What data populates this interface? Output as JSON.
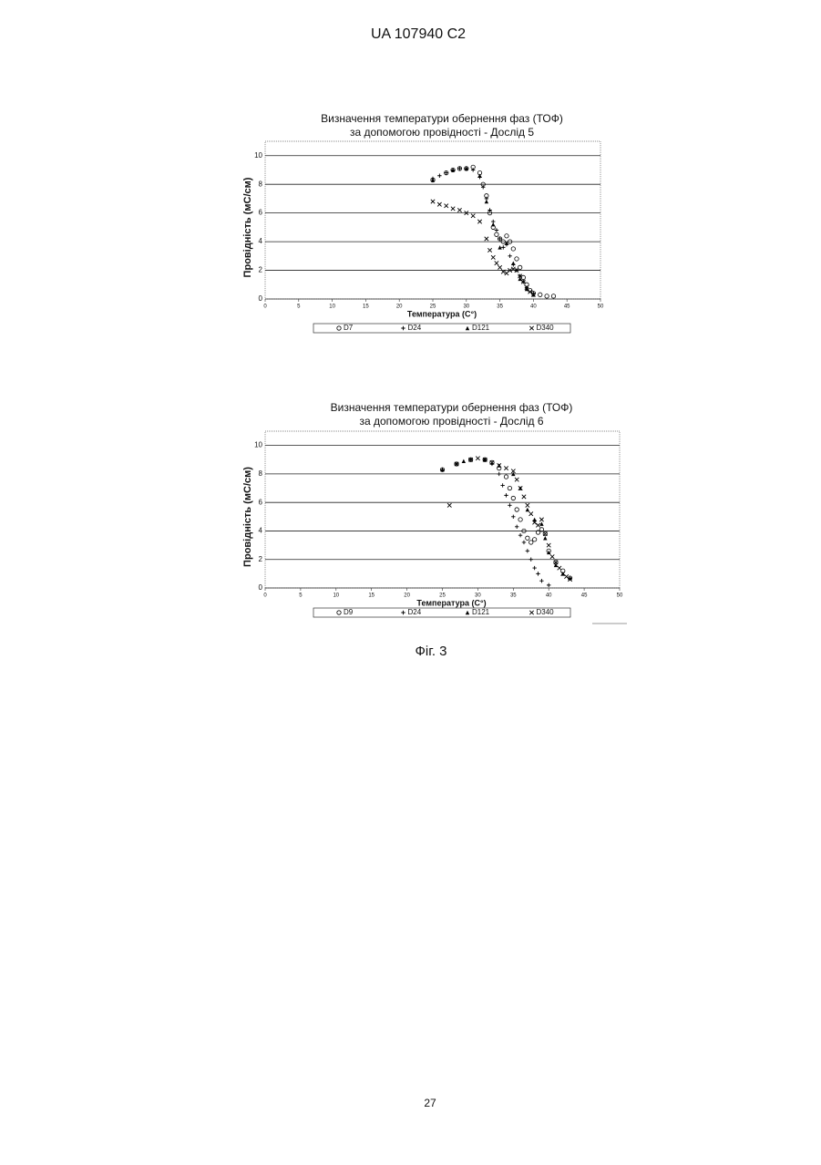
{
  "header": "UA   107940   C2",
  "chart_data": [
    {
      "type": "scatter",
      "title": "Визначення температури обернення фаз (ТОФ)",
      "subtitle": "за допомогою провідності - Дослід 5",
      "x_label": "Температура (C°)",
      "y_label": "Провідність (мС/см)",
      "xlim": [
        0,
        50
      ],
      "ylim": [
        0,
        11
      ],
      "xticks": [
        0,
        5,
        10,
        15,
        20,
        25,
        30,
        35,
        40,
        45,
        50
      ],
      "yticks": [
        0,
        2,
        4,
        6,
        8,
        10
      ],
      "grid": true,
      "series": [
        {
          "name": "D7",
          "color": "#000000",
          "marker": "circle",
          "x": [
            25,
            27,
            28,
            29,
            30,
            31,
            32,
            32.5,
            33,
            33.5,
            34,
            34.5,
            35,
            35.5,
            36,
            36.5,
            37,
            37.5,
            38,
            38.5,
            39,
            39.5,
            40,
            41,
            42,
            43
          ],
          "values": [
            8.3,
            8.8,
            9.0,
            9.1,
            9.1,
            9.2,
            8.8,
            8.0,
            7.2,
            6.0,
            5.0,
            4.5,
            4.2,
            4.0,
            4.4,
            4.0,
            3.5,
            2.8,
            2.2,
            1.5,
            1.0,
            0.6,
            0.4,
            0.3,
            0.2,
            0.2
          ]
        },
        {
          "name": "D24",
          "color": "#000000",
          "marker": "plus",
          "x": [
            25,
            26,
            27,
            28,
            29,
            30,
            31,
            32,
            32.5,
            33,
            33.5,
            34,
            34.5,
            35,
            35.5,
            36,
            36.5,
            37,
            37.5,
            38,
            38.5,
            39,
            40
          ],
          "values": [
            8.4,
            8.6,
            8.8,
            9.0,
            9.1,
            9.1,
            9.0,
            8.5,
            7.8,
            7.0,
            6.2,
            5.4,
            4.8,
            4.2,
            3.6,
            3.8,
            3.0,
            2.4,
            2.0,
            1.6,
            1.2,
            0.8,
            0.4
          ]
        },
        {
          "name": "D121",
          "color": "#000000",
          "marker": "triangle",
          "x": [
            25,
            28,
            30,
            32,
            33,
            34,
            35,
            36,
            37,
            38,
            39,
            40
          ],
          "values": [
            8.3,
            9.0,
            9.1,
            8.6,
            6.8,
            5.2,
            3.6,
            3.9,
            2.5,
            1.4,
            0.7,
            0.3
          ]
        },
        {
          "name": "D340",
          "color": "#000000",
          "marker": "cross",
          "x": [
            25,
            26,
            27,
            28,
            29,
            30,
            31,
            32,
            33,
            33.5,
            34,
            34.5,
            35,
            35.5,
            36,
            36.5,
            37,
            37.5,
            38,
            38.5,
            39,
            39.5,
            40
          ],
          "values": [
            6.8,
            6.6,
            6.5,
            6.3,
            6.2,
            6.0,
            5.8,
            5.4,
            4.2,
            3.4,
            2.9,
            2.5,
            2.2,
            1.9,
            1.8,
            2.0,
            2.1,
            2.0,
            1.6,
            1.2,
            0.8,
            0.5,
            0.3
          ]
        }
      ]
    },
    {
      "type": "scatter",
      "title": "Визначення температури обернення фаз (ТОФ)",
      "subtitle": "за допомогою провідності - Дослід 6",
      "x_label": "Температура (C°)",
      "y_label": "Провідність (мС/см)",
      "xlim": [
        0,
        50
      ],
      "ylim": [
        0,
        11
      ],
      "xticks": [
        0,
        5,
        10,
        15,
        20,
        25,
        30,
        35,
        40,
        45,
        50
      ],
      "yticks": [
        0,
        2,
        4,
        6,
        8,
        10
      ],
      "grid": true,
      "series": [
        {
          "name": "D9",
          "color": "#000000",
          "marker": "circle",
          "x": [
            25,
            27,
            29,
            31,
            32,
            33,
            34,
            34.5,
            35,
            35.5,
            36,
            36.5,
            37,
            37.5,
            38,
            38.5,
            39,
            39.5,
            40,
            41,
            42,
            43
          ],
          "values": [
            8.3,
            8.7,
            9.0,
            9.0,
            8.8,
            8.4,
            7.8,
            7.0,
            6.3,
            5.5,
            4.8,
            4.0,
            3.5,
            3.2,
            3.4,
            3.9,
            4.1,
            3.8,
            2.6,
            1.8,
            1.2,
            0.7
          ]
        },
        {
          "name": "D24",
          "color": "#000000",
          "marker": "plus",
          "x": [
            25,
            27,
            29,
            31,
            32,
            33,
            33.5,
            34,
            34.5,
            35,
            35.5,
            36,
            36.5,
            37,
            37.5,
            38,
            38.5,
            39,
            40
          ],
          "values": [
            8.3,
            8.7,
            9.0,
            9.0,
            8.7,
            8.0,
            7.2,
            6.5,
            5.8,
            5.0,
            4.3,
            3.7,
            3.2,
            2.6,
            2.0,
            1.4,
            1.0,
            0.5,
            0.2
          ]
        },
        {
          "name": "D121",
          "color": "#000000",
          "marker": "triangle",
          "x": [
            25,
            28,
            31,
            33,
            35,
            36,
            37,
            38,
            39,
            39.5,
            40,
            41,
            42,
            43
          ],
          "values": [
            8.3,
            8.9,
            9.0,
            8.6,
            8.0,
            7.0,
            5.5,
            4.8,
            4.5,
            3.5,
            2.5,
            1.6,
            1.0,
            0.7
          ]
        },
        {
          "name": "D340",
          "color": "#000000",
          "marker": "cross",
          "x": [
            26,
            27,
            29,
            30,
            31,
            32,
            33,
            34,
            35,
            35.5,
            36,
            36.5,
            37,
            37.5,
            38,
            38.5,
            39,
            39.5,
            40,
            40.5,
            41,
            41.5,
            42,
            42.5,
            43
          ],
          "values": [
            5.8,
            8.7,
            9.0,
            9.1,
            9.0,
            8.8,
            8.6,
            8.4,
            8.2,
            7.6,
            7.0,
            6.4,
            5.8,
            5.2,
            4.6,
            4.4,
            4.8,
            3.8,
            3.0,
            2.2,
            1.8,
            1.4,
            1.0,
            0.8,
            0.6
          ]
        }
      ]
    }
  ],
  "caption": "Фіг. 3",
  "page_number": "27"
}
